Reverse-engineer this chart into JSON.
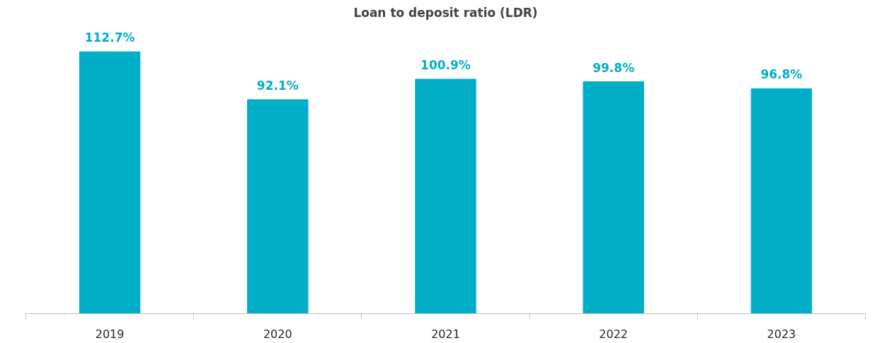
{
  "chart_data": {
    "type": "bar",
    "title": "Loan to deposit ratio (LDR)",
    "categories": [
      "2019",
      "2020",
      "2021",
      "2022",
      "2023"
    ],
    "values": [
      112.7,
      92.1,
      100.9,
      99.8,
      96.8
    ],
    "value_labels": [
      "112.7%",
      "92.1%",
      "100.9%",
      "99.8%",
      "96.8%"
    ],
    "color": "#00aec7",
    "grid": false
  }
}
